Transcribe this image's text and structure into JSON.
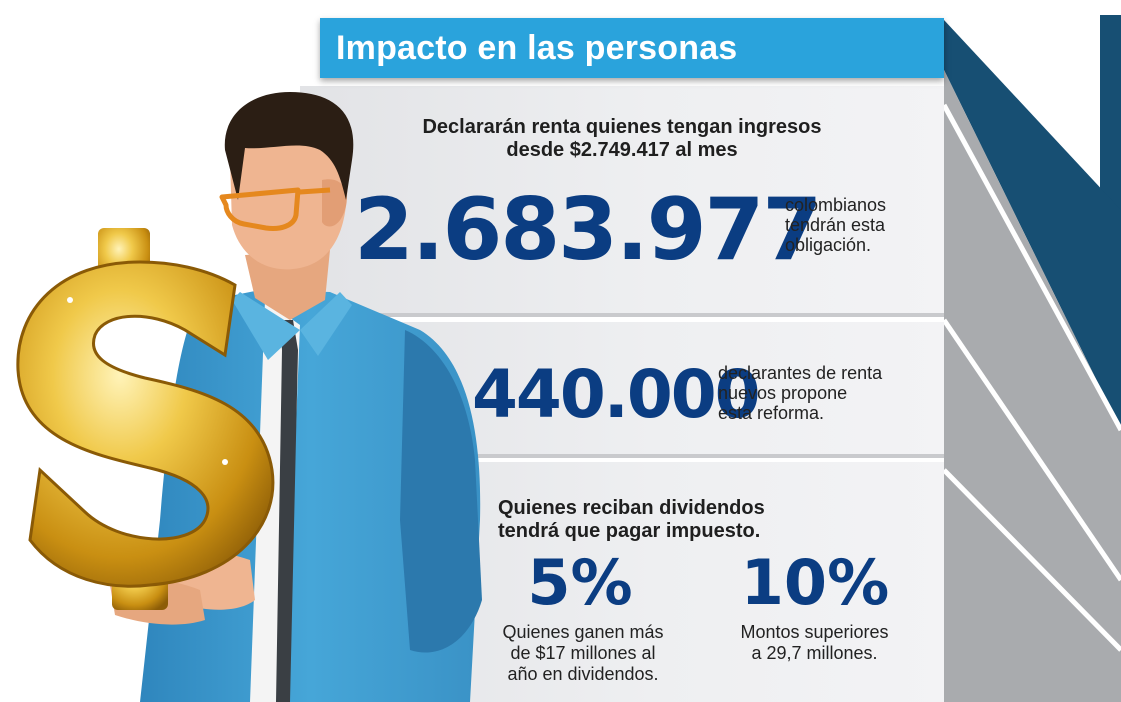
{
  "title": "Impacto en las personas",
  "panel1": {
    "line1": "Declararán renta quienes tengan ingresos",
    "line2": "desde $2.749.417 al mes",
    "number": "2.683.977",
    "note": [
      "colombianos",
      "tendrán esta",
      "obligación."
    ]
  },
  "panel2": {
    "number": "440.000",
    "note": [
      "declarantes de renta",
      "nuevos propone",
      "esta reforma."
    ]
  },
  "panel3": {
    "line1": "Quienes reciban dividendos",
    "line2": "tendrá que pagar impuesto.",
    "items": [
      {
        "value": "5%",
        "desc": [
          "Quienes ganen más",
          "de $17 millones al",
          "año en dividendos."
        ]
      },
      {
        "value": "10%",
        "desc": [
          "Montos superiores",
          "a 29,7 millones."
        ]
      }
    ]
  },
  "colors": {
    "title_bg": "#2aa3dc",
    "number": "#0b3d82",
    "dark_stripe": "#174f73",
    "shirt": "#3e9dd0",
    "coin": "#d9a41c"
  }
}
